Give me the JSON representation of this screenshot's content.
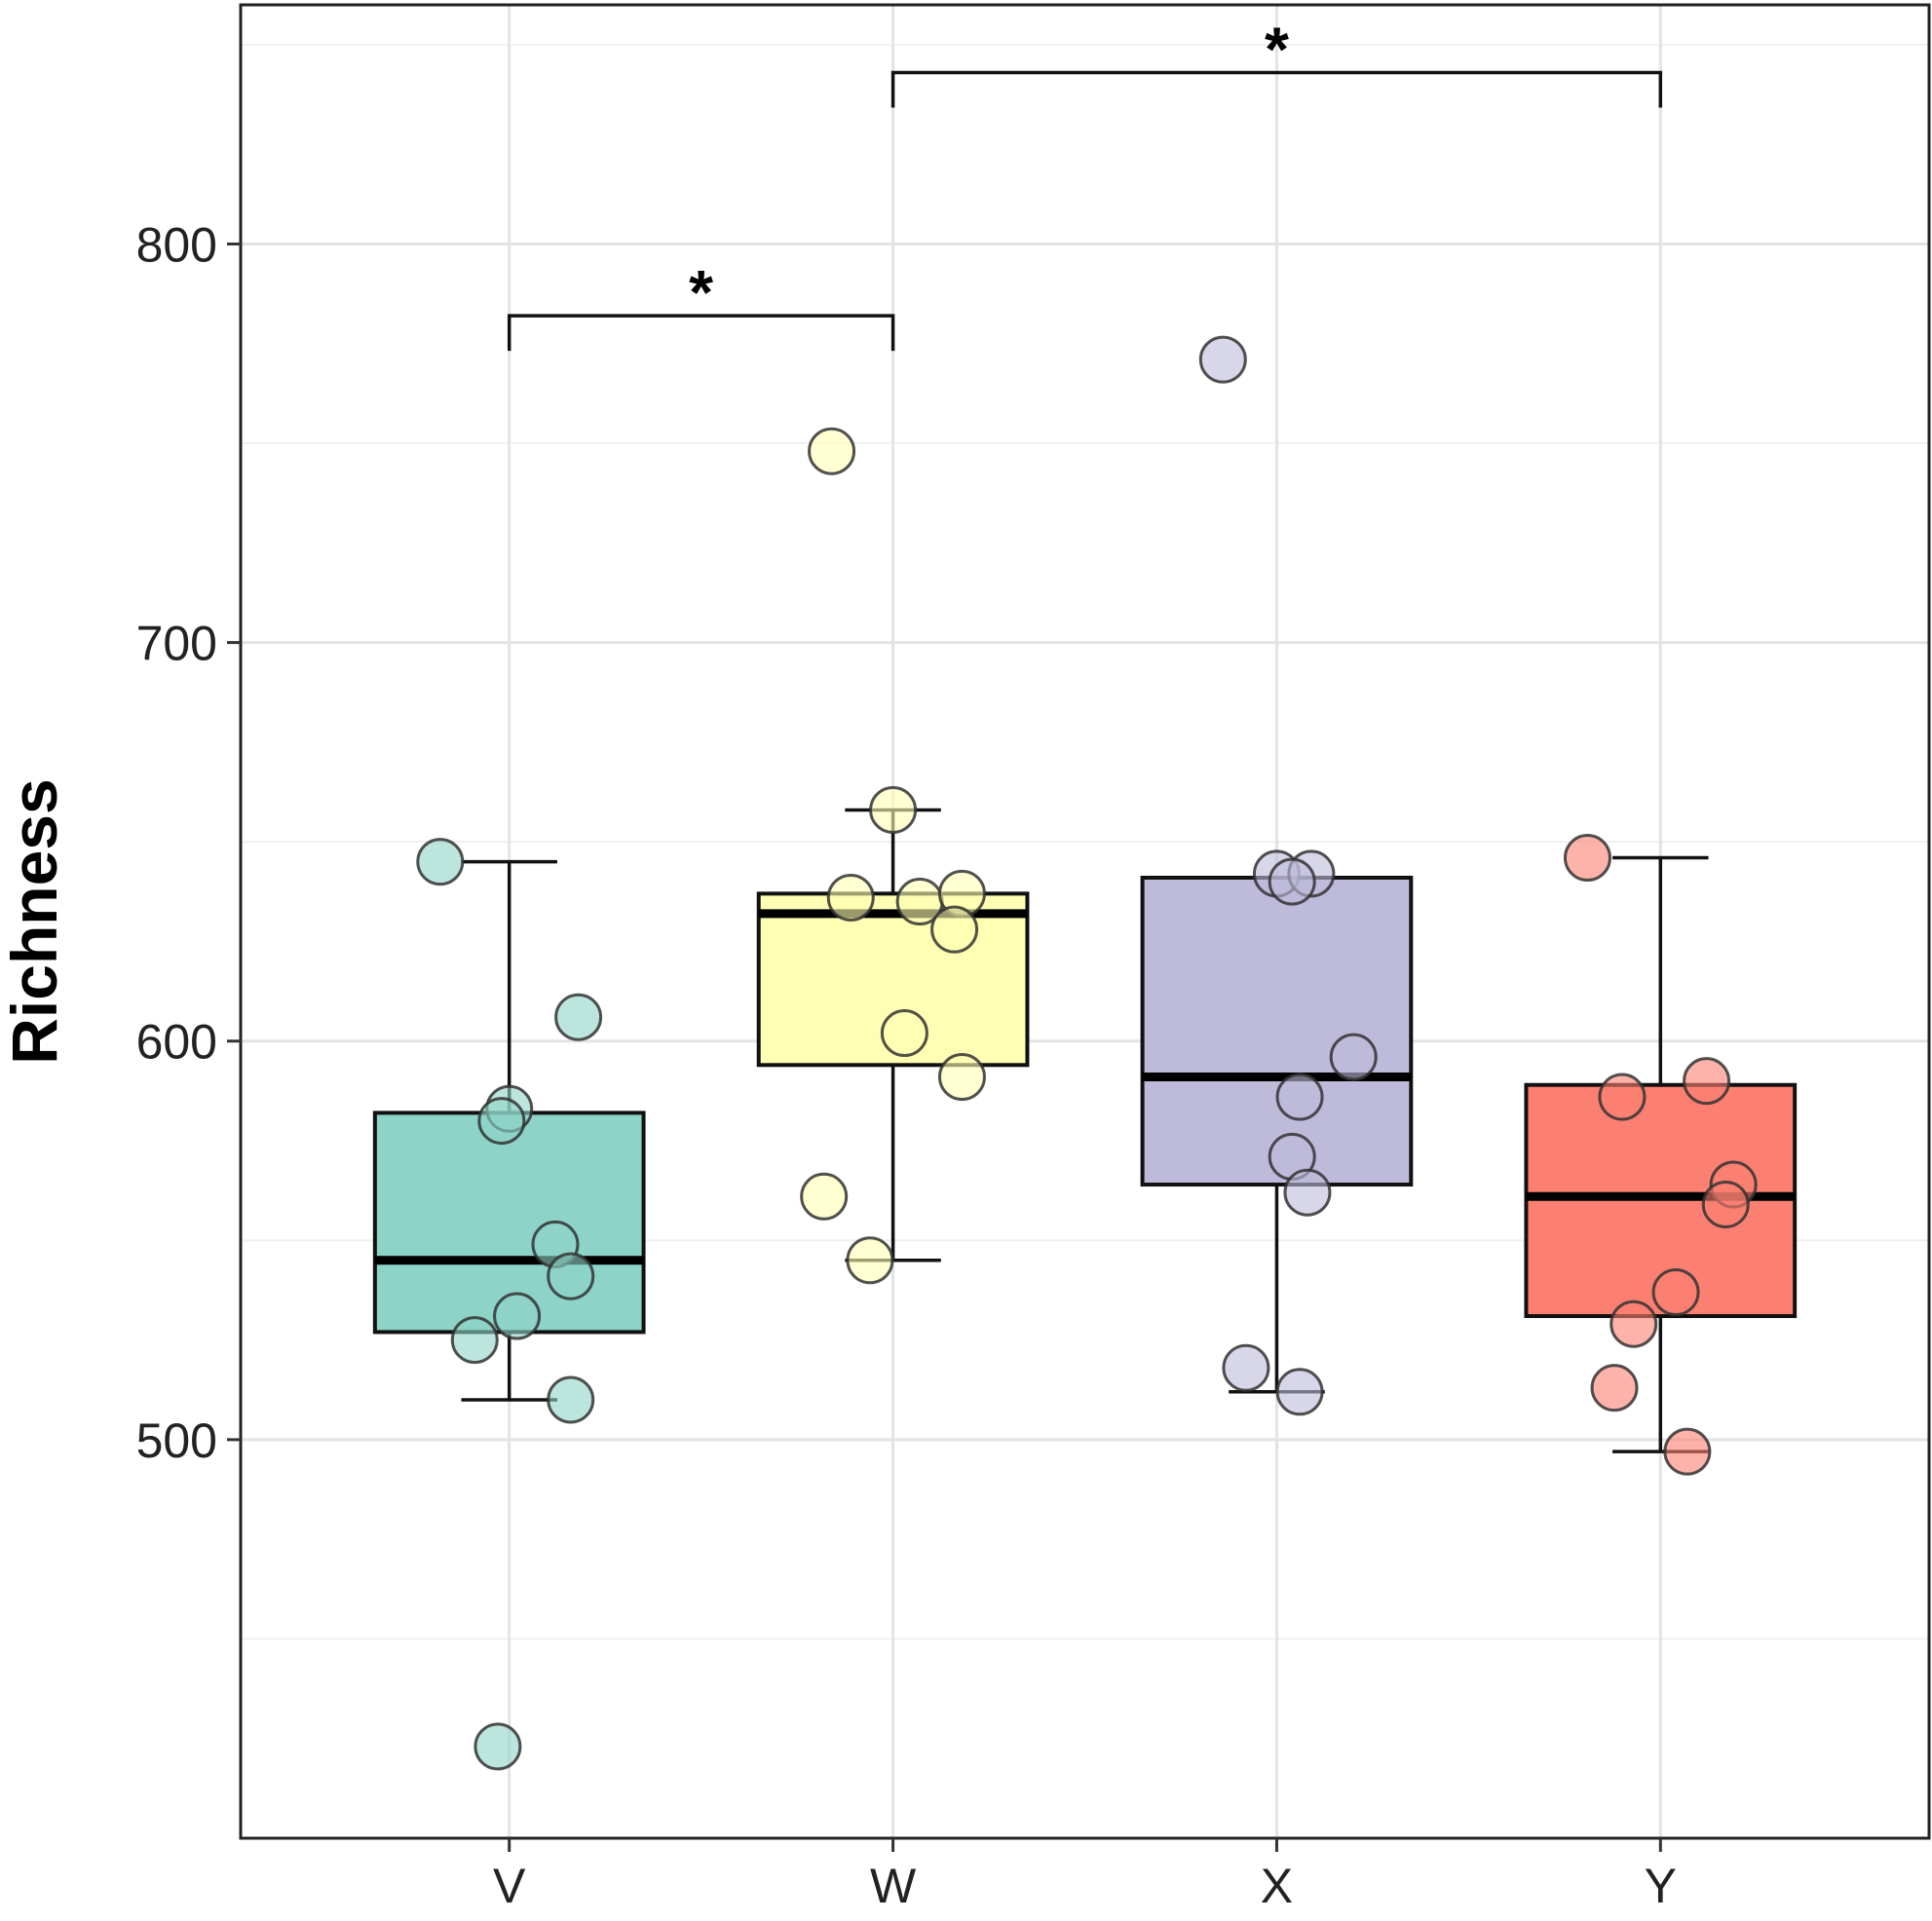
{
  "chart_data": {
    "type": "box",
    "title": "",
    "xlabel": "",
    "ylabel": "Richness",
    "ylim": [
      400,
      860
    ],
    "yticks": [
      500,
      600,
      700,
      800
    ],
    "grid": true,
    "legend": "none",
    "categories": [
      "V",
      "W",
      "X",
      "Y"
    ],
    "groups": [
      {
        "name": "V",
        "color": "#8dd3c7",
        "whisker_low": 510,
        "q1": 527,
        "median": 545,
        "q3": 582,
        "whisker_high": 645,
        "points": [
          {
            "dx": -0.18,
            "y": 645
          },
          {
            "dx": 0.18,
            "y": 606
          },
          {
            "dx": 0.0,
            "y": 583
          },
          {
            "dx": -0.02,
            "y": 580
          },
          {
            "dx": 0.12,
            "y": 549
          },
          {
            "dx": 0.16,
            "y": 541
          },
          {
            "dx": 0.02,
            "y": 531
          },
          {
            "dx": -0.09,
            "y": 525
          },
          {
            "dx": 0.16,
            "y": 510
          },
          {
            "dx": -0.03,
            "y": 423
          }
        ]
      },
      {
        "name": "W",
        "color": "#ffffb3",
        "whisker_low": 545,
        "q1": 594,
        "median": 632,
        "q3": 637,
        "whisker_high": 658,
        "points": [
          {
            "dx": -0.16,
            "y": 748
          },
          {
            "dx": 0.0,
            "y": 658
          },
          {
            "dx": -0.11,
            "y": 636
          },
          {
            "dx": 0.07,
            "y": 635
          },
          {
            "dx": 0.18,
            "y": 637
          },
          {
            "dx": 0.16,
            "y": 628
          },
          {
            "dx": 0.03,
            "y": 602
          },
          {
            "dx": 0.18,
            "y": 591
          },
          {
            "dx": -0.18,
            "y": 561
          },
          {
            "dx": -0.06,
            "y": 545
          }
        ]
      },
      {
        "name": "X",
        "color": "#bebada",
        "whisker_low": 512,
        "q1": 564,
        "median": 591,
        "q3": 641,
        "whisker_high": 641,
        "points": [
          {
            "dx": -0.14,
            "y": 771
          },
          {
            "dx": 0.0,
            "y": 642
          },
          {
            "dx": 0.09,
            "y": 642
          },
          {
            "dx": 0.04,
            "y": 640
          },
          {
            "dx": 0.2,
            "y": 596
          },
          {
            "dx": 0.06,
            "y": 586
          },
          {
            "dx": 0.04,
            "y": 571
          },
          {
            "dx": 0.08,
            "y": 562
          },
          {
            "dx": -0.08,
            "y": 518
          },
          {
            "dx": 0.06,
            "y": 512
          }
        ]
      },
      {
        "name": "Y",
        "color": "#fb8072",
        "whisker_low": 497,
        "q1": 531,
        "median": 561,
        "q3": 589,
        "whisker_high": 646,
        "points": [
          {
            "dx": -0.19,
            "y": 646
          },
          {
            "dx": 0.12,
            "y": 590
          },
          {
            "dx": -0.1,
            "y": 586
          },
          {
            "dx": 0.19,
            "y": 564
          },
          {
            "dx": 0.17,
            "y": 559
          },
          {
            "dx": 0.04,
            "y": 537
          },
          {
            "dx": -0.07,
            "y": 529
          },
          {
            "dx": -0.12,
            "y": 513
          },
          {
            "dx": 0.07,
            "y": 497
          }
        ]
      }
    ],
    "significance": [
      {
        "from": "V",
        "to": "W",
        "y": 782,
        "label": "*"
      },
      {
        "from": "W",
        "to": "Y",
        "y": 843,
        "label": "*"
      }
    ]
  }
}
